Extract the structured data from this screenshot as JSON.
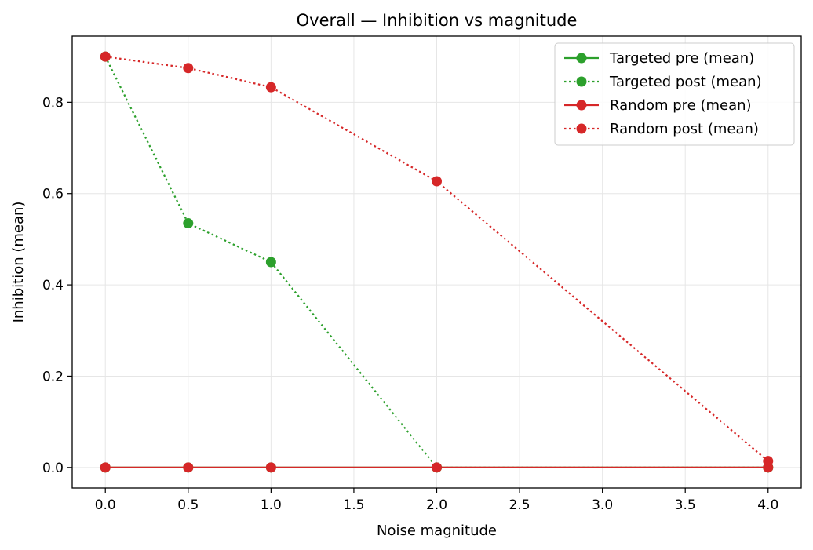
{
  "chart_data": {
    "type": "line",
    "title": "Overall — Inhibition vs magnitude",
    "xlabel": "Noise magnitude",
    "ylabel": "Inhibition (mean)",
    "xlim": [
      -0.2,
      4.2
    ],
    "ylim": [
      -0.045,
      0.945
    ],
    "xticks": [
      0.0,
      0.5,
      1.0,
      1.5,
      2.0,
      2.5,
      3.0,
      3.5,
      4.0
    ],
    "xtick_labels": [
      "0.0",
      "0.5",
      "1.0",
      "1.5",
      "2.0",
      "2.5",
      "3.0",
      "3.5",
      "4.0"
    ],
    "yticks": [
      0.0,
      0.2,
      0.4,
      0.6,
      0.8
    ],
    "ytick_labels": [
      "0.0",
      "0.2",
      "0.4",
      "0.6",
      "0.8"
    ],
    "grid": true,
    "legend_position": "top-right",
    "x": [
      0.0,
      0.5,
      1.0,
      2.0,
      4.0
    ],
    "series": [
      {
        "name": "Targeted pre (mean)",
        "color": "#2ca02c",
        "linestyle": "solid",
        "marker": "circle",
        "values": [
          0.0,
          0.0,
          0.0,
          0.0,
          0.0
        ]
      },
      {
        "name": "Targeted post (mean)",
        "color": "#2ca02c",
        "linestyle": "dotted",
        "marker": "circle",
        "values": [
          0.9,
          0.535,
          0.45,
          0.0,
          0.0
        ]
      },
      {
        "name": "Random pre (mean)",
        "color": "#d62728",
        "linestyle": "solid",
        "marker": "circle",
        "values": [
          0.0,
          0.0,
          0.0,
          0.0,
          0.0
        ]
      },
      {
        "name": "Random post (mean)",
        "color": "#d62728",
        "linestyle": "dotted",
        "marker": "circle",
        "values": [
          0.9,
          0.875,
          0.833,
          0.627,
          0.014
        ]
      }
    ]
  }
}
